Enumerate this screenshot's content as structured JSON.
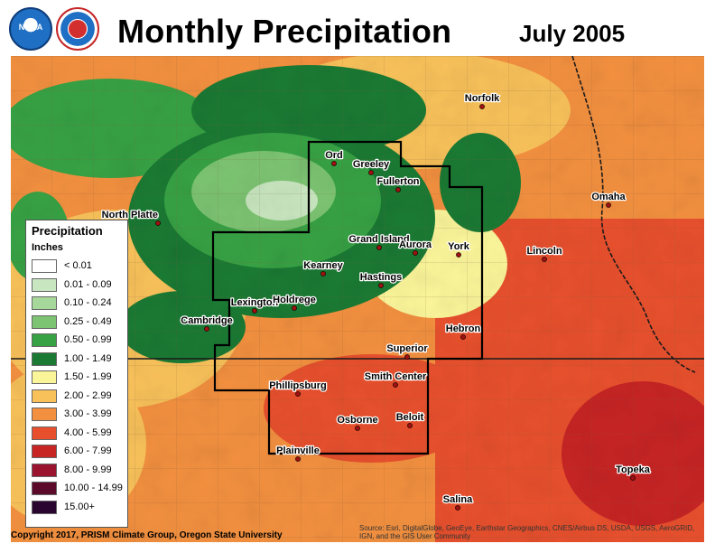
{
  "header": {
    "title": "Monthly Precipitation",
    "period": "July 2005",
    "logos": [
      {
        "name": "noaa-logo",
        "text": "NOAA"
      },
      {
        "name": "national-weather-service-logo",
        "text": "NATIONAL WEATHER SERVICE"
      }
    ]
  },
  "legend": {
    "title": "Precipitation",
    "units": "Inches",
    "classes": [
      {
        "label": "< 0.01",
        "color": "#ffffff"
      },
      {
        "label": "0.01 - 0.09",
        "color": "#c8e6c0"
      },
      {
        "label": "0.10 - 0.24",
        "color": "#a6d89c"
      },
      {
        "label": "0.25 - 0.49",
        "color": "#7cc472"
      },
      {
        "label": "0.50 - 0.99",
        "color": "#37a244"
      },
      {
        "label": "1.00 - 1.49",
        "color": "#1a7a33"
      },
      {
        "label": "1.50 - 1.99",
        "color": "#fbf59a"
      },
      {
        "label": "2.00 - 2.99",
        "color": "#f8c15a"
      },
      {
        "label": "3.00 - 3.99",
        "color": "#f3903f"
      },
      {
        "label": "4.00 - 5.99",
        "color": "#e8502d"
      },
      {
        "label": "6.00 - 7.99",
        "color": "#c72424"
      },
      {
        "label": "8.00 - 9.99",
        "color": "#9a1430"
      },
      {
        "label": "10.00 - 14.99",
        "color": "#5c0a2a"
      },
      {
        "label": "15.00+",
        "color": "#2a0530"
      }
    ]
  },
  "cities": [
    "North Platte",
    "Lexington",
    "Kearney",
    "Holdrege",
    "Cambridge",
    "Ord",
    "Greeley",
    "Fullerton",
    "Grand Island",
    "Aurora",
    "York",
    "Hastings",
    "Hebron",
    "Superior",
    "Norfolk",
    "Omaha",
    "Lincoln",
    "Phillipsburg",
    "Smith Center",
    "Osborne",
    "Beloit",
    "Plainville",
    "Topeka",
    "Salina"
  ],
  "footer": {
    "credit": "Copyright 2017, PRISM Climate Group, Oregon State University",
    "sources": "Source: Esri, DigitalGlobe, GeoEye, Earthstar Geographics, CNES/Airbus DS, USDA, USGS, AeroGRID, IGN, and the GIS User Community"
  }
}
